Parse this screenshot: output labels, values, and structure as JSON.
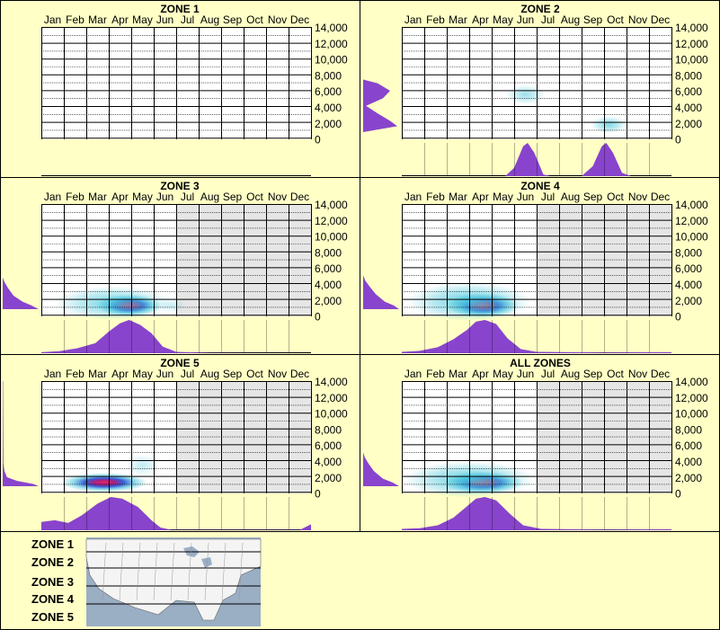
{
  "colors": {
    "background": "#ffffc6",
    "purple": "#8844cc",
    "grid_line": "#000000",
    "shade": "#e6e6e6",
    "hot": "#ee2266",
    "mid": "#1e4bd2",
    "cool": "#4cc8dc"
  },
  "legend": {
    "zones": [
      "ZONE 1",
      "ZONE 2",
      "ZONE 3",
      "ZONE 4",
      "ZONE 5"
    ],
    "map_icon": "north-america-map-icon"
  },
  "chart_data": [
    {
      "type": "heatmap",
      "title": "ZONE 1",
      "x_ticks": [
        "Jan",
        "Feb",
        "Mar",
        "Apr",
        "May",
        "Jun",
        "Jul",
        "Aug",
        "Sep",
        "Oct",
        "Nov",
        "Dec"
      ],
      "y_ticks": [
        "14,000",
        "12,000",
        "10,000",
        "8,000",
        "6,000",
        "4,000",
        "2,000",
        "0"
      ],
      "ylim": [
        0,
        14000
      ],
      "shaded_months_from": null,
      "blobs": [],
      "month_profile": [],
      "elevation_profile": []
    },
    {
      "type": "heatmap",
      "title": "ZONE 2",
      "x_ticks": [
        "Jan",
        "Feb",
        "Mar",
        "Apr",
        "May",
        "Jun",
        "Jul",
        "Aug",
        "Sep",
        "Oct",
        "Nov",
        "Dec"
      ],
      "y_ticks": [
        "14,000",
        "12,000",
        "10,000",
        "8,000",
        "6,000",
        "4,000",
        "2,000",
        "0"
      ],
      "ylim": [
        0,
        14000
      ],
      "shaded_months_from": null,
      "blobs": [
        {
          "month": 5.5,
          "elev": 5000,
          "intensity": 0.35,
          "sx": 0.55,
          "sy": 800
        },
        {
          "month": 9.2,
          "elev": 1000,
          "intensity": 0.45,
          "sx": 0.5,
          "sy": 700
        }
      ],
      "month_profile": [
        [
          0,
          0
        ],
        [
          4.6,
          0
        ],
        [
          5.0,
          0.25
        ],
        [
          5.4,
          0.9
        ],
        [
          5.6,
          1
        ],
        [
          5.9,
          0.7
        ],
        [
          6.3,
          0.05
        ],
        [
          6.6,
          0
        ],
        [
          8.0,
          0
        ],
        [
          8.5,
          0.3
        ],
        [
          8.9,
          0.9
        ],
        [
          9.1,
          1
        ],
        [
          9.4,
          0.7
        ],
        [
          9.8,
          0.1
        ],
        [
          10.2,
          0
        ],
        [
          12,
          0
        ]
      ],
      "elevation_profile": [
        [
          0,
          0
        ],
        [
          800,
          0.95
        ],
        [
          1500,
          0.75
        ],
        [
          2500,
          0.4
        ],
        [
          3500,
          0.08
        ],
        [
          4500,
          0.55
        ],
        [
          5500,
          0.75
        ],
        [
          6500,
          0.4
        ],
        [
          7000,
          0
        ],
        [
          14000,
          0
        ]
      ]
    },
    {
      "type": "heatmap",
      "title": "ZONE 3",
      "x_ticks": [
        "Jan",
        "Feb",
        "Mar",
        "Apr",
        "May",
        "Jun",
        "Jul",
        "Aug",
        "Sep",
        "Oct",
        "Nov",
        "Dec"
      ],
      "y_ticks": [
        "14,000",
        "12,000",
        "10,000",
        "8,000",
        "6,000",
        "4,000",
        "2,000",
        "0"
      ],
      "ylim": [
        0,
        14000
      ],
      "shaded_months_from": 6,
      "blobs": [
        {
          "month": 3.9,
          "elev": 500,
          "intensity": 1.0,
          "sx": 0.9,
          "sy": 900
        },
        {
          "month": 3.2,
          "elev": 800,
          "intensity": 0.5,
          "sx": 1.6,
          "sy": 1400
        },
        {
          "month": 5.8,
          "elev": 500,
          "intensity": 0.2,
          "sx": 0.4,
          "sy": 500
        }
      ],
      "month_profile": [
        [
          0,
          0.03
        ],
        [
          0.8,
          0.06
        ],
        [
          1.6,
          0.15
        ],
        [
          2.4,
          0.3
        ],
        [
          3.0,
          0.65
        ],
        [
          3.5,
          0.9
        ],
        [
          3.9,
          1
        ],
        [
          4.4,
          0.85
        ],
        [
          4.9,
          0.6
        ],
        [
          5.4,
          0.2
        ],
        [
          6.0,
          0.04
        ],
        [
          7.5,
          0.01
        ],
        [
          12,
          0
        ]
      ],
      "elevation_profile": [
        [
          0,
          1
        ],
        [
          500,
          0.8
        ],
        [
          1000,
          0.55
        ],
        [
          1800,
          0.3
        ],
        [
          2800,
          0.15
        ],
        [
          3600,
          0.05
        ],
        [
          4200,
          0
        ],
        [
          14000,
          0
        ]
      ]
    },
    {
      "type": "heatmap",
      "title": "ZONE 4",
      "x_ticks": [
        "Jan",
        "Feb",
        "Mar",
        "Apr",
        "May",
        "Jun",
        "Jul",
        "Aug",
        "Sep",
        "Oct",
        "Nov",
        "Dec"
      ],
      "y_ticks": [
        "14,000",
        "12,000",
        "10,000",
        "8,000",
        "6,000",
        "4,000",
        "2,000",
        "0"
      ],
      "ylim": [
        0,
        14000
      ],
      "shaded_months_from": 6,
      "blobs": [
        {
          "month": 3.6,
          "elev": 500,
          "intensity": 1.0,
          "sx": 1.0,
          "sy": 1000
        },
        {
          "month": 3.0,
          "elev": 1000,
          "intensity": 0.55,
          "sx": 1.7,
          "sy": 1600
        }
      ],
      "month_profile": [
        [
          0,
          0.04
        ],
        [
          0.8,
          0.07
        ],
        [
          1.6,
          0.18
        ],
        [
          2.3,
          0.42
        ],
        [
          2.9,
          0.7
        ],
        [
          3.3,
          0.95
        ],
        [
          3.7,
          1
        ],
        [
          4.2,
          0.88
        ],
        [
          4.7,
          0.45
        ],
        [
          5.3,
          0.12
        ],
        [
          6.0,
          0.04
        ],
        [
          9.0,
          0.02
        ],
        [
          12,
          0.03
        ]
      ],
      "elevation_profile": [
        [
          0,
          1
        ],
        [
          500,
          0.85
        ],
        [
          1000,
          0.6
        ],
        [
          2000,
          0.35
        ],
        [
          3000,
          0.18
        ],
        [
          3800,
          0.06
        ],
        [
          4500,
          0
        ],
        [
          14000,
          0
        ]
      ]
    },
    {
      "type": "heatmap",
      "title": "ZONE 5",
      "x_ticks": [
        "Jan",
        "Feb",
        "Mar",
        "Apr",
        "May",
        "Jun",
        "Jul",
        "Aug",
        "Sep",
        "Oct",
        "Nov",
        "Dec"
      ],
      "y_ticks": [
        "14,000",
        "12,000",
        "10,000",
        "8,000",
        "6,000",
        "4,000",
        "2,000",
        "0"
      ],
      "ylim": [
        0,
        14000
      ],
      "shaded_months_from": 6,
      "blobs": [
        {
          "month": 2.8,
          "elev": 500,
          "intensity": 1.0,
          "sx": 1.2,
          "sy": 800
        },
        {
          "month": 4.5,
          "elev": 2800,
          "intensity": 0.22,
          "sx": 0.45,
          "sy": 900
        }
      ],
      "month_profile": [
        [
          0,
          0.25
        ],
        [
          0.6,
          0.3
        ],
        [
          1.2,
          0.22
        ],
        [
          1.8,
          0.45
        ],
        [
          2.5,
          0.8
        ],
        [
          3.1,
          1
        ],
        [
          3.6,
          0.95
        ],
        [
          4.3,
          0.7
        ],
        [
          4.9,
          0.3
        ],
        [
          5.3,
          0.08
        ],
        [
          5.8,
          0.01
        ],
        [
          11.5,
          0.01
        ],
        [
          12,
          0.18
        ]
      ],
      "elevation_profile": [
        [
          0,
          1
        ],
        [
          300,
          0.85
        ],
        [
          700,
          0.4
        ],
        [
          1200,
          0.12
        ],
        [
          2000,
          0.05
        ],
        [
          3000,
          0.02
        ],
        [
          14000,
          0.01
        ]
      ]
    },
    {
      "type": "heatmap",
      "title": "ALL ZONES",
      "x_ticks": [
        "Jan",
        "Feb",
        "Mar",
        "Apr",
        "May",
        "Jun",
        "Jul",
        "Aug",
        "Sep",
        "Oct",
        "Nov",
        "Dec"
      ],
      "y_ticks": [
        "14,000",
        "12,000",
        "10,000",
        "8,000",
        "6,000",
        "4,000",
        "2,000",
        "0"
      ],
      "ylim": [
        0,
        14000
      ],
      "shaded_months_from": 6,
      "blobs": [
        {
          "month": 3.6,
          "elev": 500,
          "intensity": 1.0,
          "sx": 1.1,
          "sy": 900
        },
        {
          "month": 3.0,
          "elev": 900,
          "intensity": 0.55,
          "sx": 1.8,
          "sy": 1500
        }
      ],
      "month_profile": [
        [
          0,
          0.04
        ],
        [
          0.8,
          0.06
        ],
        [
          1.6,
          0.15
        ],
        [
          2.3,
          0.38
        ],
        [
          2.9,
          0.72
        ],
        [
          3.3,
          0.95
        ],
        [
          3.7,
          1
        ],
        [
          4.2,
          0.9
        ],
        [
          4.8,
          0.5
        ],
        [
          5.4,
          0.15
        ],
        [
          6.2,
          0.04
        ],
        [
          9.0,
          0.02
        ],
        [
          12,
          0.03
        ]
      ],
      "elevation_profile": [
        [
          0,
          1
        ],
        [
          500,
          0.82
        ],
        [
          1000,
          0.55
        ],
        [
          2000,
          0.3
        ],
        [
          3000,
          0.15
        ],
        [
          3800,
          0.05
        ],
        [
          4500,
          0
        ],
        [
          14000,
          0
        ]
      ]
    }
  ]
}
